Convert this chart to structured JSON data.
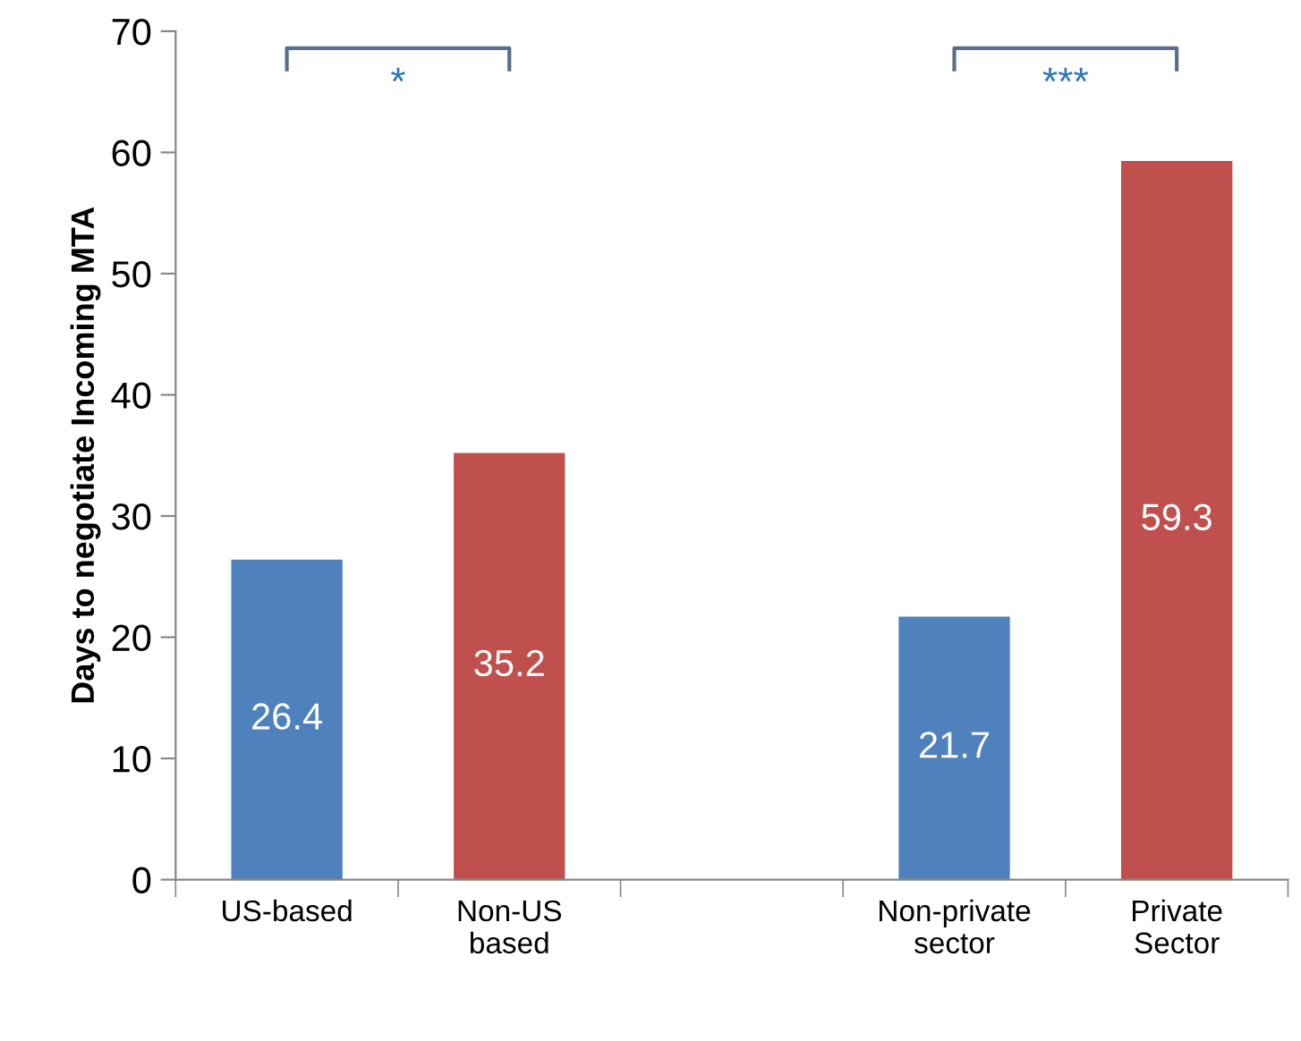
{
  "chart_data": {
    "type": "bar",
    "ylabel": "Days to negotiate Incoming MTA",
    "categories": [
      "US-based",
      "Non-US\nbased",
      null,
      "Non-private\nsector",
      "Private\nSector"
    ],
    "values": [
      26.4,
      35.2,
      null,
      21.7,
      59.3
    ],
    "colors": [
      "#4f81bd",
      "#c0504d",
      null,
      "#4f81bd",
      "#c0504d"
    ],
    "value_labels": [
      "26.4",
      "35.2",
      null,
      "21.7",
      "59.3"
    ],
    "ylim": [
      0,
      70
    ],
    "yticks": [
      0,
      10,
      20,
      30,
      40,
      50,
      60,
      70
    ],
    "annotations": [
      "*",
      "***"
    ]
  }
}
